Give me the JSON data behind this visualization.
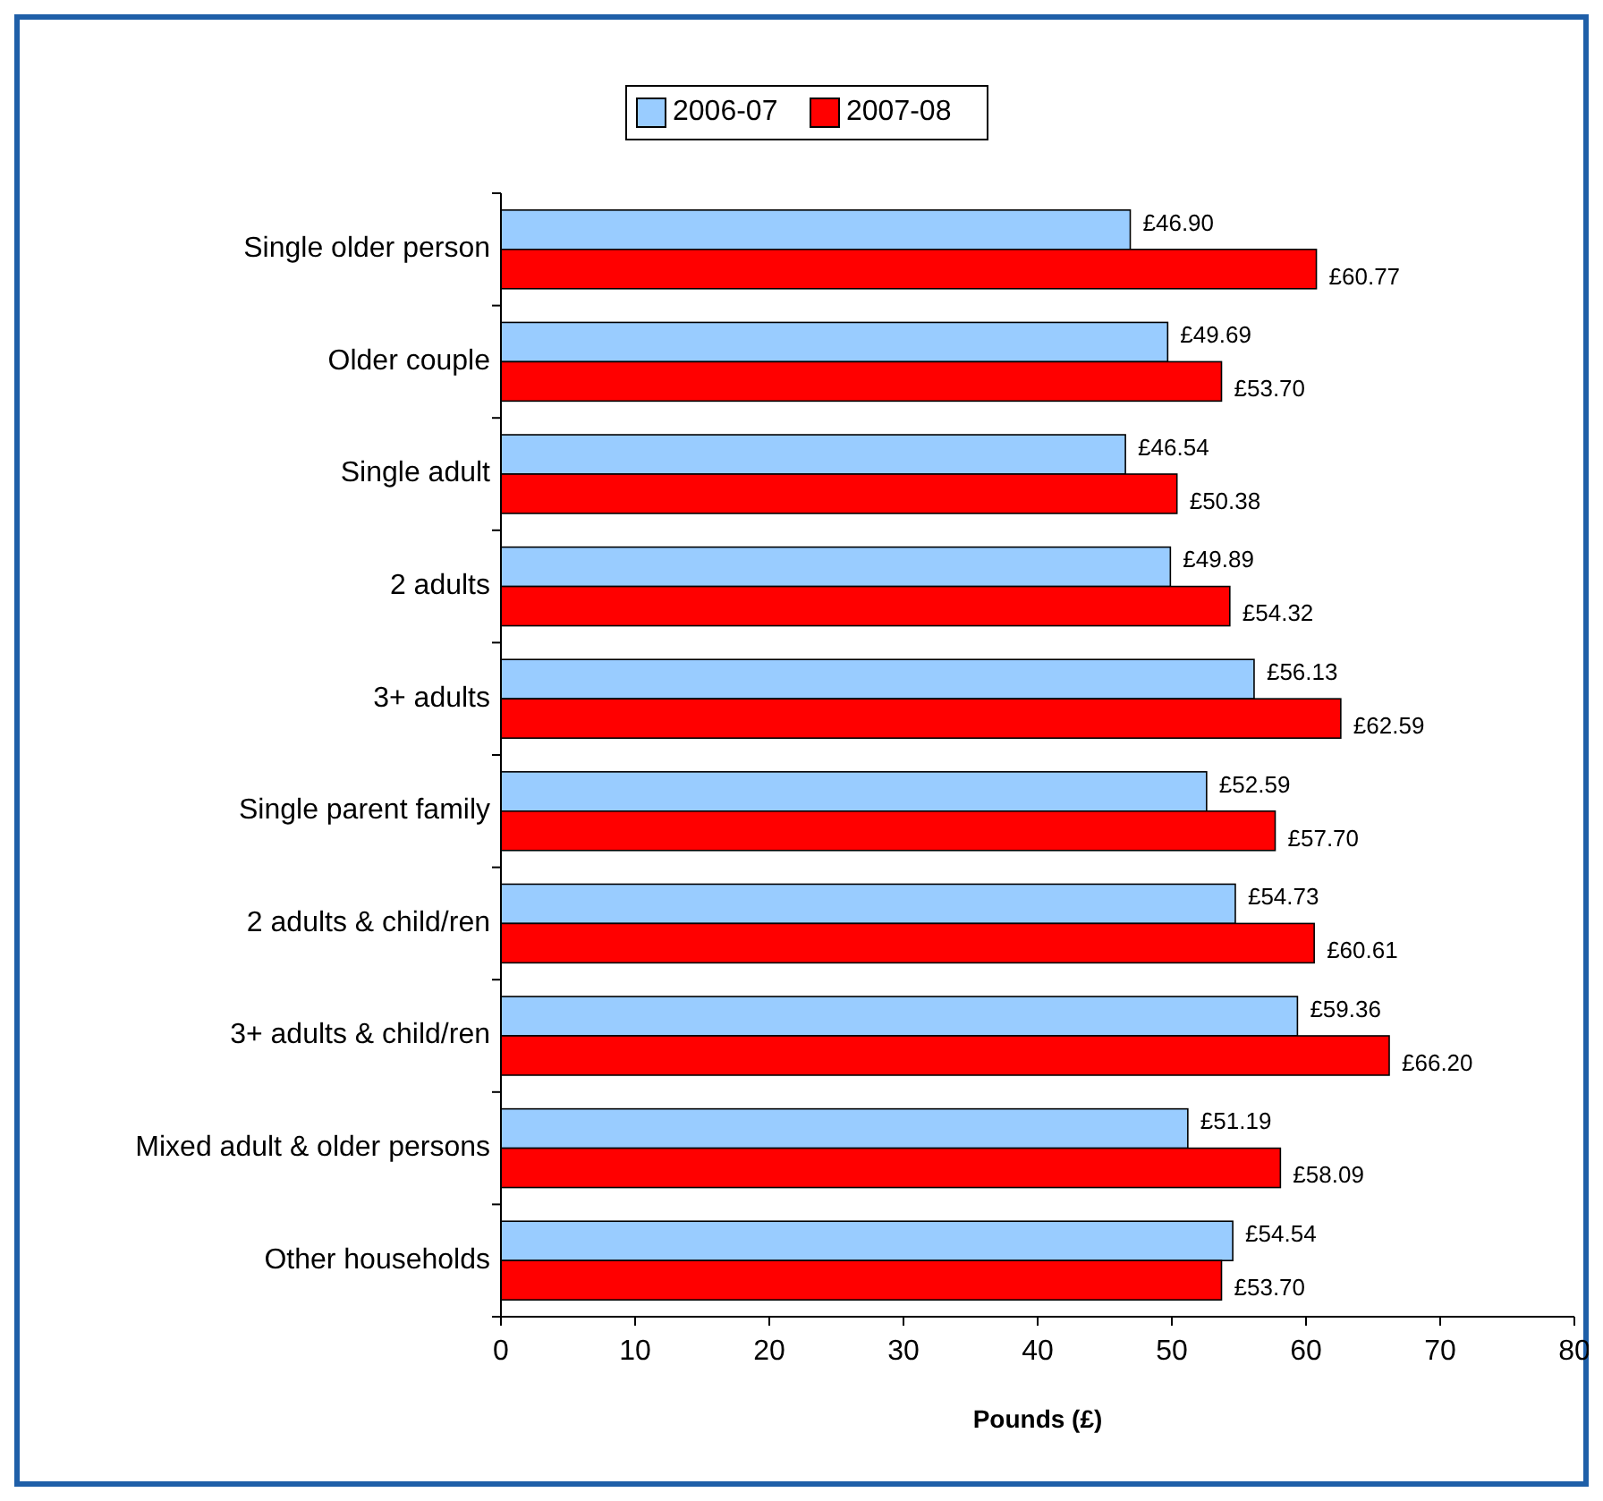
{
  "chart_data": {
    "type": "bar",
    "orientation": "horizontal",
    "xlabel": "Pounds (£)",
    "categories": [
      "Single older person",
      "Older couple",
      "Single adult",
      "2 adults",
      "3+ adults",
      "Single parent family",
      "2 adults & child/ren",
      "3+ adults & child/ren",
      "Mixed adult & older persons",
      "Other households"
    ],
    "series": [
      {
        "name": "2006-07",
        "color": "#99ccff",
        "values": [
          46.9,
          49.69,
          46.54,
          49.89,
          56.13,
          52.59,
          54.73,
          59.36,
          51.19,
          54.54
        ],
        "value_labels": [
          "£46.90",
          "£49.69",
          "£46.54",
          "£49.89",
          "£56.13",
          "£52.59",
          "£54.73",
          "£59.36",
          "£51.19",
          "£54.54"
        ]
      },
      {
        "name": "2007-08",
        "color": "#ff0000",
        "values": [
          60.77,
          53.7,
          50.38,
          54.32,
          62.59,
          57.7,
          60.61,
          66.2,
          58.09,
          53.7
        ],
        "value_labels": [
          "£60.77",
          "£53.70",
          "£50.38",
          "£54.32",
          "£62.59",
          "£57.70",
          "£60.61",
          "£66.20",
          "£58.09",
          "£53.70"
        ]
      }
    ],
    "xlim": [
      0,
      80
    ],
    "xticks": [
      0,
      10,
      20,
      30,
      40,
      50,
      60,
      70,
      80
    ],
    "grid": false,
    "legend": "top"
  }
}
